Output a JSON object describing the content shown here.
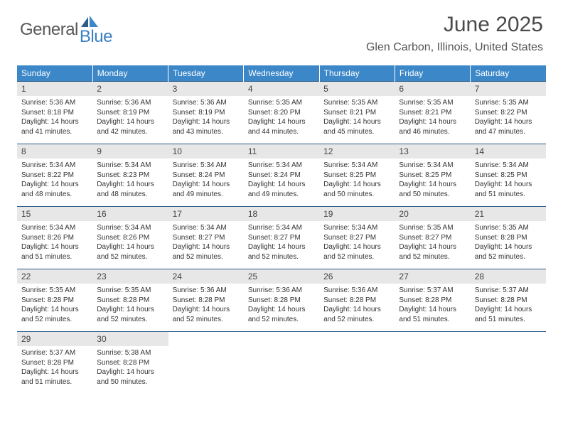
{
  "brand": {
    "part1": "General",
    "part2": "Blue"
  },
  "title": "June 2025",
  "location": "Glen Carbon, Illinois, United States",
  "colors": {
    "header_bg": "#3b87c8",
    "daynum_bg": "#e7e7e7",
    "rule": "#2d5b88",
    "brand_blue": "#3b7fc4"
  },
  "days_of_week": [
    "Sunday",
    "Monday",
    "Tuesday",
    "Wednesday",
    "Thursday",
    "Friday",
    "Saturday"
  ],
  "days": [
    {
      "n": "1",
      "sr": "5:36 AM",
      "ss": "8:18 PM",
      "dl": "14 hours and 41 minutes."
    },
    {
      "n": "2",
      "sr": "5:36 AM",
      "ss": "8:19 PM",
      "dl": "14 hours and 42 minutes."
    },
    {
      "n": "3",
      "sr": "5:36 AM",
      "ss": "8:19 PM",
      "dl": "14 hours and 43 minutes."
    },
    {
      "n": "4",
      "sr": "5:35 AM",
      "ss": "8:20 PM",
      "dl": "14 hours and 44 minutes."
    },
    {
      "n": "5",
      "sr": "5:35 AM",
      "ss": "8:21 PM",
      "dl": "14 hours and 45 minutes."
    },
    {
      "n": "6",
      "sr": "5:35 AM",
      "ss": "8:21 PM",
      "dl": "14 hours and 46 minutes."
    },
    {
      "n": "7",
      "sr": "5:35 AM",
      "ss": "8:22 PM",
      "dl": "14 hours and 47 minutes."
    },
    {
      "n": "8",
      "sr": "5:34 AM",
      "ss": "8:22 PM",
      "dl": "14 hours and 48 minutes."
    },
    {
      "n": "9",
      "sr": "5:34 AM",
      "ss": "8:23 PM",
      "dl": "14 hours and 48 minutes."
    },
    {
      "n": "10",
      "sr": "5:34 AM",
      "ss": "8:24 PM",
      "dl": "14 hours and 49 minutes."
    },
    {
      "n": "11",
      "sr": "5:34 AM",
      "ss": "8:24 PM",
      "dl": "14 hours and 49 minutes."
    },
    {
      "n": "12",
      "sr": "5:34 AM",
      "ss": "8:25 PM",
      "dl": "14 hours and 50 minutes."
    },
    {
      "n": "13",
      "sr": "5:34 AM",
      "ss": "8:25 PM",
      "dl": "14 hours and 50 minutes."
    },
    {
      "n": "14",
      "sr": "5:34 AM",
      "ss": "8:25 PM",
      "dl": "14 hours and 51 minutes."
    },
    {
      "n": "15",
      "sr": "5:34 AM",
      "ss": "8:26 PM",
      "dl": "14 hours and 51 minutes."
    },
    {
      "n": "16",
      "sr": "5:34 AM",
      "ss": "8:26 PM",
      "dl": "14 hours and 52 minutes."
    },
    {
      "n": "17",
      "sr": "5:34 AM",
      "ss": "8:27 PM",
      "dl": "14 hours and 52 minutes."
    },
    {
      "n": "18",
      "sr": "5:34 AM",
      "ss": "8:27 PM",
      "dl": "14 hours and 52 minutes."
    },
    {
      "n": "19",
      "sr": "5:34 AM",
      "ss": "8:27 PM",
      "dl": "14 hours and 52 minutes."
    },
    {
      "n": "20",
      "sr": "5:35 AM",
      "ss": "8:27 PM",
      "dl": "14 hours and 52 minutes."
    },
    {
      "n": "21",
      "sr": "5:35 AM",
      "ss": "8:28 PM",
      "dl": "14 hours and 52 minutes."
    },
    {
      "n": "22",
      "sr": "5:35 AM",
      "ss": "8:28 PM",
      "dl": "14 hours and 52 minutes."
    },
    {
      "n": "23",
      "sr": "5:35 AM",
      "ss": "8:28 PM",
      "dl": "14 hours and 52 minutes."
    },
    {
      "n": "24",
      "sr": "5:36 AM",
      "ss": "8:28 PM",
      "dl": "14 hours and 52 minutes."
    },
    {
      "n": "25",
      "sr": "5:36 AM",
      "ss": "8:28 PM",
      "dl": "14 hours and 52 minutes."
    },
    {
      "n": "26",
      "sr": "5:36 AM",
      "ss": "8:28 PM",
      "dl": "14 hours and 52 minutes."
    },
    {
      "n": "27",
      "sr": "5:37 AM",
      "ss": "8:28 PM",
      "dl": "14 hours and 51 minutes."
    },
    {
      "n": "28",
      "sr": "5:37 AM",
      "ss": "8:28 PM",
      "dl": "14 hours and 51 minutes."
    },
    {
      "n": "29",
      "sr": "5:37 AM",
      "ss": "8:28 PM",
      "dl": "14 hours and 51 minutes."
    },
    {
      "n": "30",
      "sr": "5:38 AM",
      "ss": "8:28 PM",
      "dl": "14 hours and 50 minutes."
    }
  ],
  "labels": {
    "sunrise": "Sunrise:",
    "sunset": "Sunset:",
    "daylight": "Daylight:"
  }
}
